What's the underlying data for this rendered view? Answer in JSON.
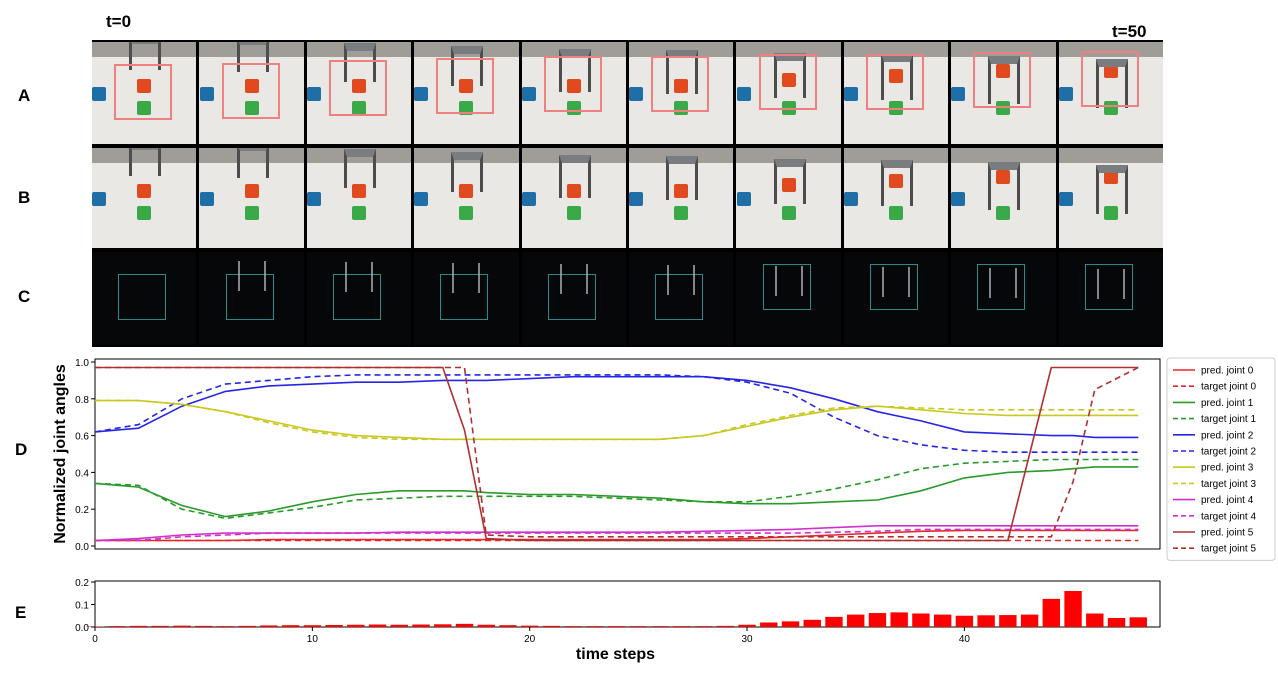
{
  "time_labels": {
    "start": "t=0",
    "end": "t=50"
  },
  "row_labels": {
    "a": "A",
    "b": "B",
    "c": "C",
    "d": "D",
    "e": "E"
  },
  "frame_count": 10,
  "colors": {
    "joint0": "#e8262a",
    "joint1": "#2a9a2a",
    "joint2": "#2525e8",
    "joint3": "#c8c820",
    "joint4": "#d030d0",
    "joint5": "#b03030",
    "error_bar": "#ff0000",
    "cube_red": "#e04a1e",
    "cube_green": "#3aaa48",
    "cube_blue": "#1e6ea8"
  },
  "chart_data": [
    {
      "type": "line",
      "ylabel": "Normalized joint angles",
      "xlim": [
        0,
        49
      ],
      "ylim": [
        0,
        1.0
      ],
      "yticks": [
        "0.0",
        "0.2",
        "0.4",
        "0.6",
        "0.8",
        "1.0"
      ],
      "grid": false,
      "legend_position": "right",
      "x": [
        0,
        2,
        4,
        6,
        8,
        10,
        12,
        14,
        16,
        17,
        18,
        20,
        22,
        24,
        26,
        28,
        30,
        32,
        34,
        36,
        38,
        40,
        42,
        44,
        45,
        46,
        48
      ],
      "series": [
        {
          "name": "pred. joint 0",
          "style": "solid",
          "color_key": "joint0",
          "values": [
            0.03,
            0.03,
            0.03,
            0.03,
            0.035,
            0.035,
            0.035,
            0.035,
            0.035,
            0.035,
            0.035,
            0.035,
            0.035,
            0.035,
            0.035,
            0.035,
            0.04,
            0.05,
            0.06,
            0.07,
            0.08,
            0.085,
            0.085,
            0.085,
            0.085,
            0.085,
            0.085
          ]
        },
        {
          "name": "target joint 0",
          "style": "dashed",
          "color_key": "joint0",
          "values": [
            0.03,
            0.03,
            0.03,
            0.03,
            0.03,
            0.03,
            0.03,
            0.03,
            0.03,
            0.03,
            0.03,
            0.03,
            0.03,
            0.03,
            0.03,
            0.03,
            0.03,
            0.03,
            0.03,
            0.03,
            0.03,
            0.03,
            0.03,
            0.03,
            0.03,
            0.03,
            0.03
          ]
        },
        {
          "name": "pred. joint 1",
          "style": "solid",
          "color_key": "joint1",
          "values": [
            0.34,
            0.32,
            0.22,
            0.16,
            0.19,
            0.24,
            0.28,
            0.3,
            0.3,
            0.3,
            0.29,
            0.28,
            0.28,
            0.27,
            0.26,
            0.24,
            0.23,
            0.23,
            0.24,
            0.25,
            0.3,
            0.37,
            0.4,
            0.41,
            0.42,
            0.43,
            0.43
          ]
        },
        {
          "name": "target joint 1",
          "style": "dashed",
          "color_key": "joint1",
          "values": [
            0.34,
            0.33,
            0.2,
            0.15,
            0.18,
            0.21,
            0.25,
            0.26,
            0.27,
            0.27,
            0.27,
            0.27,
            0.27,
            0.26,
            0.25,
            0.24,
            0.24,
            0.27,
            0.31,
            0.36,
            0.42,
            0.45,
            0.46,
            0.47,
            0.47,
            0.47,
            0.47
          ]
        },
        {
          "name": "pred. joint 2",
          "style": "solid",
          "color_key": "joint2",
          "values": [
            0.62,
            0.64,
            0.76,
            0.84,
            0.87,
            0.88,
            0.89,
            0.89,
            0.9,
            0.9,
            0.9,
            0.91,
            0.92,
            0.92,
            0.92,
            0.92,
            0.9,
            0.86,
            0.8,
            0.73,
            0.68,
            0.62,
            0.61,
            0.6,
            0.6,
            0.59,
            0.59
          ]
        },
        {
          "name": "target joint 2",
          "style": "dashed",
          "color_key": "joint2",
          "values": [
            0.62,
            0.66,
            0.8,
            0.88,
            0.9,
            0.92,
            0.93,
            0.93,
            0.93,
            0.93,
            0.93,
            0.93,
            0.93,
            0.93,
            0.93,
            0.92,
            0.89,
            0.83,
            0.7,
            0.6,
            0.55,
            0.52,
            0.51,
            0.51,
            0.51,
            0.51,
            0.51
          ]
        },
        {
          "name": "pred. joint 3",
          "style": "solid",
          "color_key": "joint3",
          "values": [
            0.79,
            0.79,
            0.77,
            0.73,
            0.68,
            0.63,
            0.6,
            0.59,
            0.58,
            0.58,
            0.58,
            0.58,
            0.58,
            0.58,
            0.58,
            0.6,
            0.65,
            0.7,
            0.74,
            0.76,
            0.74,
            0.72,
            0.71,
            0.71,
            0.71,
            0.71,
            0.71
          ]
        },
        {
          "name": "target joint 3",
          "style": "dashed",
          "color_key": "joint3",
          "values": [
            0.79,
            0.79,
            0.77,
            0.73,
            0.67,
            0.62,
            0.59,
            0.58,
            0.58,
            0.58,
            0.58,
            0.58,
            0.58,
            0.58,
            0.58,
            0.6,
            0.66,
            0.71,
            0.75,
            0.76,
            0.75,
            0.74,
            0.74,
            0.74,
            0.74,
            0.74,
            0.74
          ]
        },
        {
          "name": "pred. joint 4",
          "style": "solid",
          "color_key": "joint4",
          "values": [
            0.03,
            0.04,
            0.06,
            0.07,
            0.07,
            0.07,
            0.07,
            0.075,
            0.075,
            0.075,
            0.075,
            0.075,
            0.075,
            0.075,
            0.075,
            0.08,
            0.085,
            0.09,
            0.1,
            0.11,
            0.11,
            0.11,
            0.11,
            0.11,
            0.11,
            0.11,
            0.11
          ]
        },
        {
          "name": "target joint 4",
          "style": "dashed",
          "color_key": "joint4",
          "values": [
            0.03,
            0.03,
            0.05,
            0.06,
            0.07,
            0.07,
            0.07,
            0.07,
            0.07,
            0.07,
            0.07,
            0.07,
            0.07,
            0.07,
            0.07,
            0.07,
            0.07,
            0.07,
            0.075,
            0.08,
            0.09,
            0.09,
            0.09,
            0.09,
            0.09,
            0.09,
            0.09
          ]
        },
        {
          "name": "pred. joint 5",
          "style": "solid",
          "color_key": "joint5",
          "values": [
            0.97,
            0.97,
            0.97,
            0.97,
            0.97,
            0.97,
            0.97,
            0.97,
            0.97,
            0.63,
            0.04,
            0.03,
            0.03,
            0.03,
            0.03,
            0.03,
            0.03,
            0.03,
            0.03,
            0.03,
            0.03,
            0.03,
            0.03,
            0.97,
            0.97,
            0.97,
            0.97
          ]
        },
        {
          "name": "target joint 5",
          "style": "dashed",
          "color_key": "joint5",
          "values": [
            0.97,
            0.97,
            0.97,
            0.97,
            0.97,
            0.97,
            0.97,
            0.97,
            0.97,
            0.97,
            0.06,
            0.05,
            0.05,
            0.05,
            0.05,
            0.05,
            0.05,
            0.05,
            0.05,
            0.05,
            0.05,
            0.05,
            0.05,
            0.05,
            0.35,
            0.85,
            0.97
          ]
        }
      ]
    },
    {
      "type": "bar",
      "xlabel": "time steps",
      "xlim": [
        0,
        49
      ],
      "ylim": [
        0,
        0.2
      ],
      "yticks": [
        "0.0",
        "0.1",
        "0.2"
      ],
      "xticks": [
        "0",
        "10",
        "20",
        "30",
        "40"
      ],
      "color_key": "error_bar",
      "x": [
        0,
        1,
        2,
        3,
        4,
        5,
        6,
        7,
        8,
        9,
        10,
        11,
        12,
        13,
        14,
        15,
        16,
        17,
        18,
        19,
        20,
        21,
        22,
        23,
        24,
        25,
        26,
        27,
        28,
        29,
        30,
        31,
        32,
        33,
        34,
        35,
        36,
        37,
        38,
        39,
        40,
        41,
        42,
        43,
        44,
        45,
        46,
        47,
        48
      ],
      "values": [
        0.002,
        0.004,
        0.005,
        0.005,
        0.006,
        0.005,
        0.004,
        0.005,
        0.007,
        0.008,
        0.008,
        0.009,
        0.01,
        0.011,
        0.01,
        0.011,
        0.012,
        0.014,
        0.01,
        0.008,
        0.006,
        0.005,
        0.004,
        0.004,
        0.004,
        0.004,
        0.004,
        0.004,
        0.004,
        0.005,
        0.01,
        0.02,
        0.025,
        0.032,
        0.045,
        0.055,
        0.062,
        0.065,
        0.06,
        0.055,
        0.05,
        0.052,
        0.053,
        0.055,
        0.125,
        0.16,
        0.06,
        0.04,
        0.043
      ]
    }
  ]
}
